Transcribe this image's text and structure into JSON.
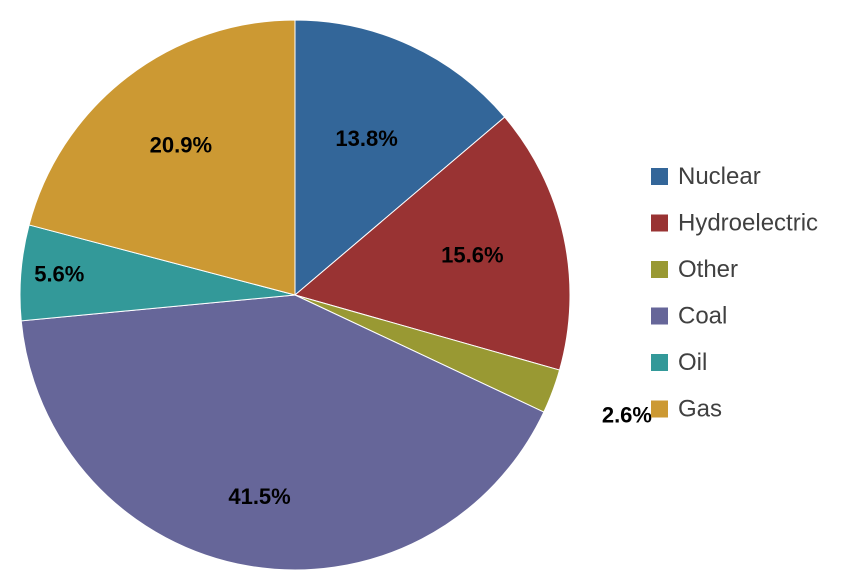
{
  "chart_data": {
    "type": "pie",
    "title": "",
    "legend_position": "right",
    "start_angle_deg": 0,
    "direction": "clockwise",
    "slices": [
      {
        "name": "Nuclear",
        "value": 13.8,
        "label": "13.8%",
        "color": "#336699"
      },
      {
        "name": "Hydroelectric",
        "value": 15.6,
        "label": "15.6%",
        "color": "#993333"
      },
      {
        "name": "Other",
        "value": 2.6,
        "label": "2.6%",
        "color": "#999933"
      },
      {
        "name": "Coal",
        "value": 41.5,
        "label": "41.5%",
        "color": "#666699"
      },
      {
        "name": "Oil",
        "value": 5.6,
        "label": "5.6%",
        "color": "#339999"
      },
      {
        "name": "Gas",
        "value": 20.9,
        "label": "20.9%",
        "color": "#CC9933"
      }
    ]
  }
}
